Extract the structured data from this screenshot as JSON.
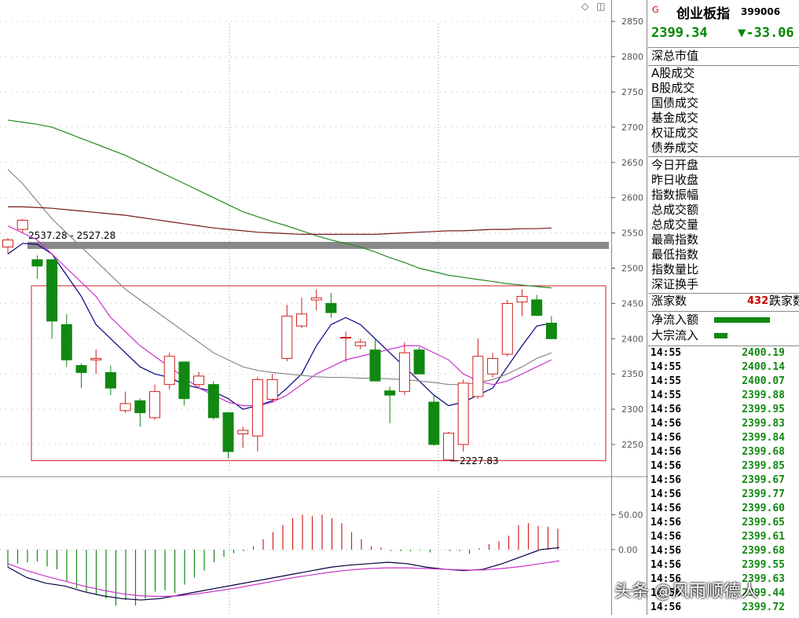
{
  "corner_icons": [
    "◇",
    "◫"
  ],
  "chart_data": {
    "type": "candlestick",
    "price_axis": {
      "ticks": [
        2250,
        2300,
        2350,
        2400,
        2450,
        2500,
        2550,
        2600,
        2650,
        2700,
        2750,
        2800,
        2850
      ]
    },
    "macd_axis": {
      "ticks": [
        "50.00",
        "0.00"
      ]
    },
    "candles": [
      {
        "o": 2530,
        "h": 2543,
        "l": 2520,
        "c": 2540
      },
      {
        "o": 2555,
        "h": 2570,
        "l": 2550,
        "c": 2568
      },
      {
        "o": 2512,
        "h": 2518,
        "l": 2485,
        "c": 2503
      },
      {
        "o": 2512,
        "h": 2512,
        "l": 2400,
        "c": 2425
      },
      {
        "o": 2420,
        "h": 2435,
        "l": 2360,
        "c": 2370
      },
      {
        "o": 2362,
        "h": 2365,
        "l": 2330,
        "c": 2352
      },
      {
        "o": 2370,
        "h": 2385,
        "l": 2350,
        "c": 2372
      },
      {
        "o": 2352,
        "h": 2362,
        "l": 2320,
        "c": 2330
      },
      {
        "o": 2298,
        "h": 2325,
        "l": 2295,
        "c": 2308
      },
      {
        "o": 2312,
        "h": 2315,
        "l": 2275,
        "c": 2295
      },
      {
        "o": 2288,
        "h": 2335,
        "l": 2285,
        "c": 2325
      },
      {
        "o": 2335,
        "h": 2380,
        "l": 2328,
        "c": 2375
      },
      {
        "o": 2367,
        "h": 2367,
        "l": 2305,
        "c": 2315
      },
      {
        "o": 2335,
        "h": 2353,
        "l": 2330,
        "c": 2347
      },
      {
        "o": 2335,
        "h": 2340,
        "l": 2285,
        "c": 2288
      },
      {
        "o": 2295,
        "h": 2296,
        "l": 2230,
        "c": 2240
      },
      {
        "o": 2265,
        "h": 2275,
        "l": 2245,
        "c": 2270
      },
      {
        "o": 2262,
        "h": 2346,
        "l": 2240,
        "c": 2342
      },
      {
        "o": 2314,
        "h": 2350,
        "l": 2310,
        "c": 2342
      },
      {
        "o": 2372,
        "h": 2448,
        "l": 2368,
        "c": 2432
      },
      {
        "o": 2418,
        "h": 2458,
        "l": 2415,
        "c": 2435
      },
      {
        "o": 2455,
        "h": 2470,
        "l": 2440,
        "c": 2458
      },
      {
        "o": 2450,
        "h": 2465,
        "l": 2430,
        "c": 2437
      },
      {
        "o": 2402,
        "h": 2410,
        "l": 2367,
        "c": 2402
      },
      {
        "o": 2390,
        "h": 2400,
        "l": 2385,
        "c": 2395
      },
      {
        "o": 2384,
        "h": 2400,
        "l": 2340,
        "c": 2340
      },
      {
        "o": 2326,
        "h": 2332,
        "l": 2280,
        "c": 2320
      },
      {
        "o": 2325,
        "h": 2395,
        "l": 2320,
        "c": 2380
      },
      {
        "o": 2384,
        "h": 2388,
        "l": 2350,
        "c": 2350
      },
      {
        "o": 2310,
        "h": 2320,
        "l": 2248,
        "c": 2250
      },
      {
        "o": 2228,
        "h": 2268,
        "l": 2228,
        "c": 2266
      },
      {
        "o": 2250,
        "h": 2342,
        "l": 2240,
        "c": 2337
      },
      {
        "o": 2318,
        "h": 2400,
        "l": 2315,
        "c": 2375
      },
      {
        "o": 2350,
        "h": 2380,
        "l": 2345,
        "c": 2372
      },
      {
        "o": 2378,
        "h": 2455,
        "l": 2375,
        "c": 2450
      },
      {
        "o": 2452,
        "h": 2470,
        "l": 2432,
        "c": 2460
      },
      {
        "o": 2455,
        "h": 2462,
        "l": 2432,
        "c": 2433
      },
      {
        "o": 2422,
        "h": 2432,
        "l": 2400,
        "c": 2400
      }
    ],
    "ma_lines": [
      {
        "color": "#000080",
        "values": [
          2520,
          2535,
          2534,
          2520,
          2490,
          2460,
          2420,
          2400,
          2380,
          2360,
          2350,
          2345,
          2335,
          2330,
          2325,
          2315,
          2300,
          2305,
          2312,
          2330,
          2350,
          2390,
          2420,
          2430,
          2420,
          2400,
          2380,
          2360,
          2340,
          2320,
          2305,
          2310,
          2320,
          2330,
          2360,
          2390,
          2418,
          2422
        ]
      },
      {
        "color": "#cc33cc",
        "values": [
          2560,
          2550,
          2540,
          2520,
          2500,
          2480,
          2460,
          2430,
          2410,
          2390,
          2375,
          2360,
          2345,
          2330,
          2320,
          2310,
          2305,
          2305,
          2310,
          2320,
          2335,
          2350,
          2360,
          2370,
          2375,
          2380,
          2385,
          2390,
          2390,
          2380,
          2370,
          2350,
          2340,
          2335,
          2340,
          2350,
          2360,
          2370
        ]
      },
      {
        "color": "#888888",
        "values": [
          2640,
          2620,
          2595,
          2570,
          2550,
          2530,
          2510,
          2490,
          2470,
          2455,
          2440,
          2425,
          2410,
          2395,
          2380,
          2370,
          2360,
          2355,
          2352,
          2350,
          2348,
          2346,
          2345,
          2345,
          2344,
          2344,
          2343,
          2342,
          2340,
          2338,
          2335,
          2335,
          2338,
          2342,
          2350,
          2360,
          2372,
          2380
        ]
      },
      {
        "color": "#228822",
        "values": [
          2710,
          2707,
          2704,
          2700,
          2692,
          2684,
          2676,
          2668,
          2660,
          2650,
          2640,
          2630,
          2620,
          2610,
          2600,
          2590,
          2580,
          2573,
          2566,
          2560,
          2553,
          2546,
          2540,
          2535,
          2530,
          2523,
          2515,
          2508,
          2500,
          2495,
          2490,
          2487,
          2484,
          2481,
          2478,
          2476,
          2474,
          2472
        ]
      },
      {
        "color": "#7a1a1a",
        "values": [
          2587,
          2587,
          2586,
          2585,
          2583,
          2581,
          2579,
          2577,
          2575,
          2572,
          2569,
          2566,
          2563,
          2560,
          2557,
          2555,
          2553,
          2551,
          2550,
          2549,
          2548,
          2548,
          2548,
          2548,
          2548,
          2548,
          2549,
          2550,
          2551,
          2552,
          2553,
          2553,
          2554,
          2555,
          2555,
          2556,
          2556,
          2557
        ]
      }
    ],
    "resistance": {
      "y1": 2537.28,
      "y2": 2527.28,
      "label": "2537.28 - 2527.28"
    },
    "box": {
      "top": 2475,
      "bottom": 2227
    },
    "low_marker": {
      "value": 2227.83,
      "label": "2227.83"
    },
    "macd": {
      "bars": [
        -25,
        -20,
        -18,
        -17,
        -24,
        -28,
        -45,
        -55,
        -60,
        -65,
        -70,
        -80,
        -72,
        -80,
        -70,
        -60,
        -58,
        -62,
        -50,
        -40,
        -30,
        -18,
        -10,
        -5,
        -2,
        5,
        15,
        25,
        35,
        45,
        50,
        48,
        50,
        45,
        38,
        25,
        15,
        5,
        3,
        -2,
        -2,
        -2,
        -1,
        -4,
        0,
        -2,
        -2,
        -6,
        2,
        8,
        12,
        20,
        35,
        38,
        34,
        33,
        30
      ],
      "dif": [
        -25,
        -40,
        -48,
        -52,
        -60,
        -66,
        -70,
        -72,
        -70,
        -65,
        -60,
        -55,
        -50,
        -45,
        -40,
        -35,
        -30,
        -25,
        -22,
        -20,
        -18,
        -20,
        -25,
        -28,
        -30,
        -28,
        -20,
        -10,
        0,
        3
      ],
      "dea": [
        -20,
        -30,
        -38,
        -45,
        -52,
        -58,
        -63,
        -66,
        -67,
        -66,
        -63,
        -59,
        -55,
        -50,
        -45,
        -40,
        -36,
        -32,
        -29,
        -27,
        -26,
        -26,
        -27,
        -28,
        -29,
        -29,
        -27,
        -24,
        -20,
        -16
      ]
    }
  },
  "panel": {
    "g_mark": "G",
    "name": "创业板指",
    "code": "399006",
    "last": "2399.34",
    "change": "▼-33.06",
    "mkt_label": "深总市值",
    "trade_labels": [
      "A股成交",
      "B股成交",
      "国债成交",
      "基金成交",
      "权证成交",
      "债券成交"
    ],
    "stat_labels": [
      "今日开盘",
      "昨日收盘",
      "指数振幅",
      "总成交额",
      "总成交量",
      "最高指数",
      "最低指数",
      "指数量比",
      "深证换手"
    ],
    "zhang_label": "涨家数",
    "zhang_value": "432",
    "die_label": "跌家数",
    "flow_labels": [
      "净流入额",
      "大宗流入"
    ],
    "flow_levels": [
      0.5,
      0.12
    ],
    "ticks": [
      {
        "t": "14:55",
        "p": "2400.19"
      },
      {
        "t": "14:55",
        "p": "2400.14"
      },
      {
        "t": "14:55",
        "p": "2400.07"
      },
      {
        "t": "14:55",
        "p": "2399.88"
      },
      {
        "t": "14:56",
        "p": "2399.95"
      },
      {
        "t": "14:56",
        "p": "2399.83"
      },
      {
        "t": "14:56",
        "p": "2399.84"
      },
      {
        "t": "14:56",
        "p": "2399.68"
      },
      {
        "t": "14:56",
        "p": "2399.85"
      },
      {
        "t": "14:56",
        "p": "2399.67"
      },
      {
        "t": "14:56",
        "p": "2399.77"
      },
      {
        "t": "14:56",
        "p": "2399.60"
      },
      {
        "t": "14:56",
        "p": "2399.65"
      },
      {
        "t": "14:56",
        "p": "2399.61"
      },
      {
        "t": "14:56",
        "p": "2399.68"
      },
      {
        "t": "14:56",
        "p": "2399.55"
      },
      {
        "t": "14:56",
        "p": "2399.63"
      },
      {
        "t": "14:56",
        "p": "2399.44"
      },
      {
        "t": "14:56",
        "p": "2399.72"
      }
    ]
  },
  "watermark": "头条 @风雨顺德人"
}
